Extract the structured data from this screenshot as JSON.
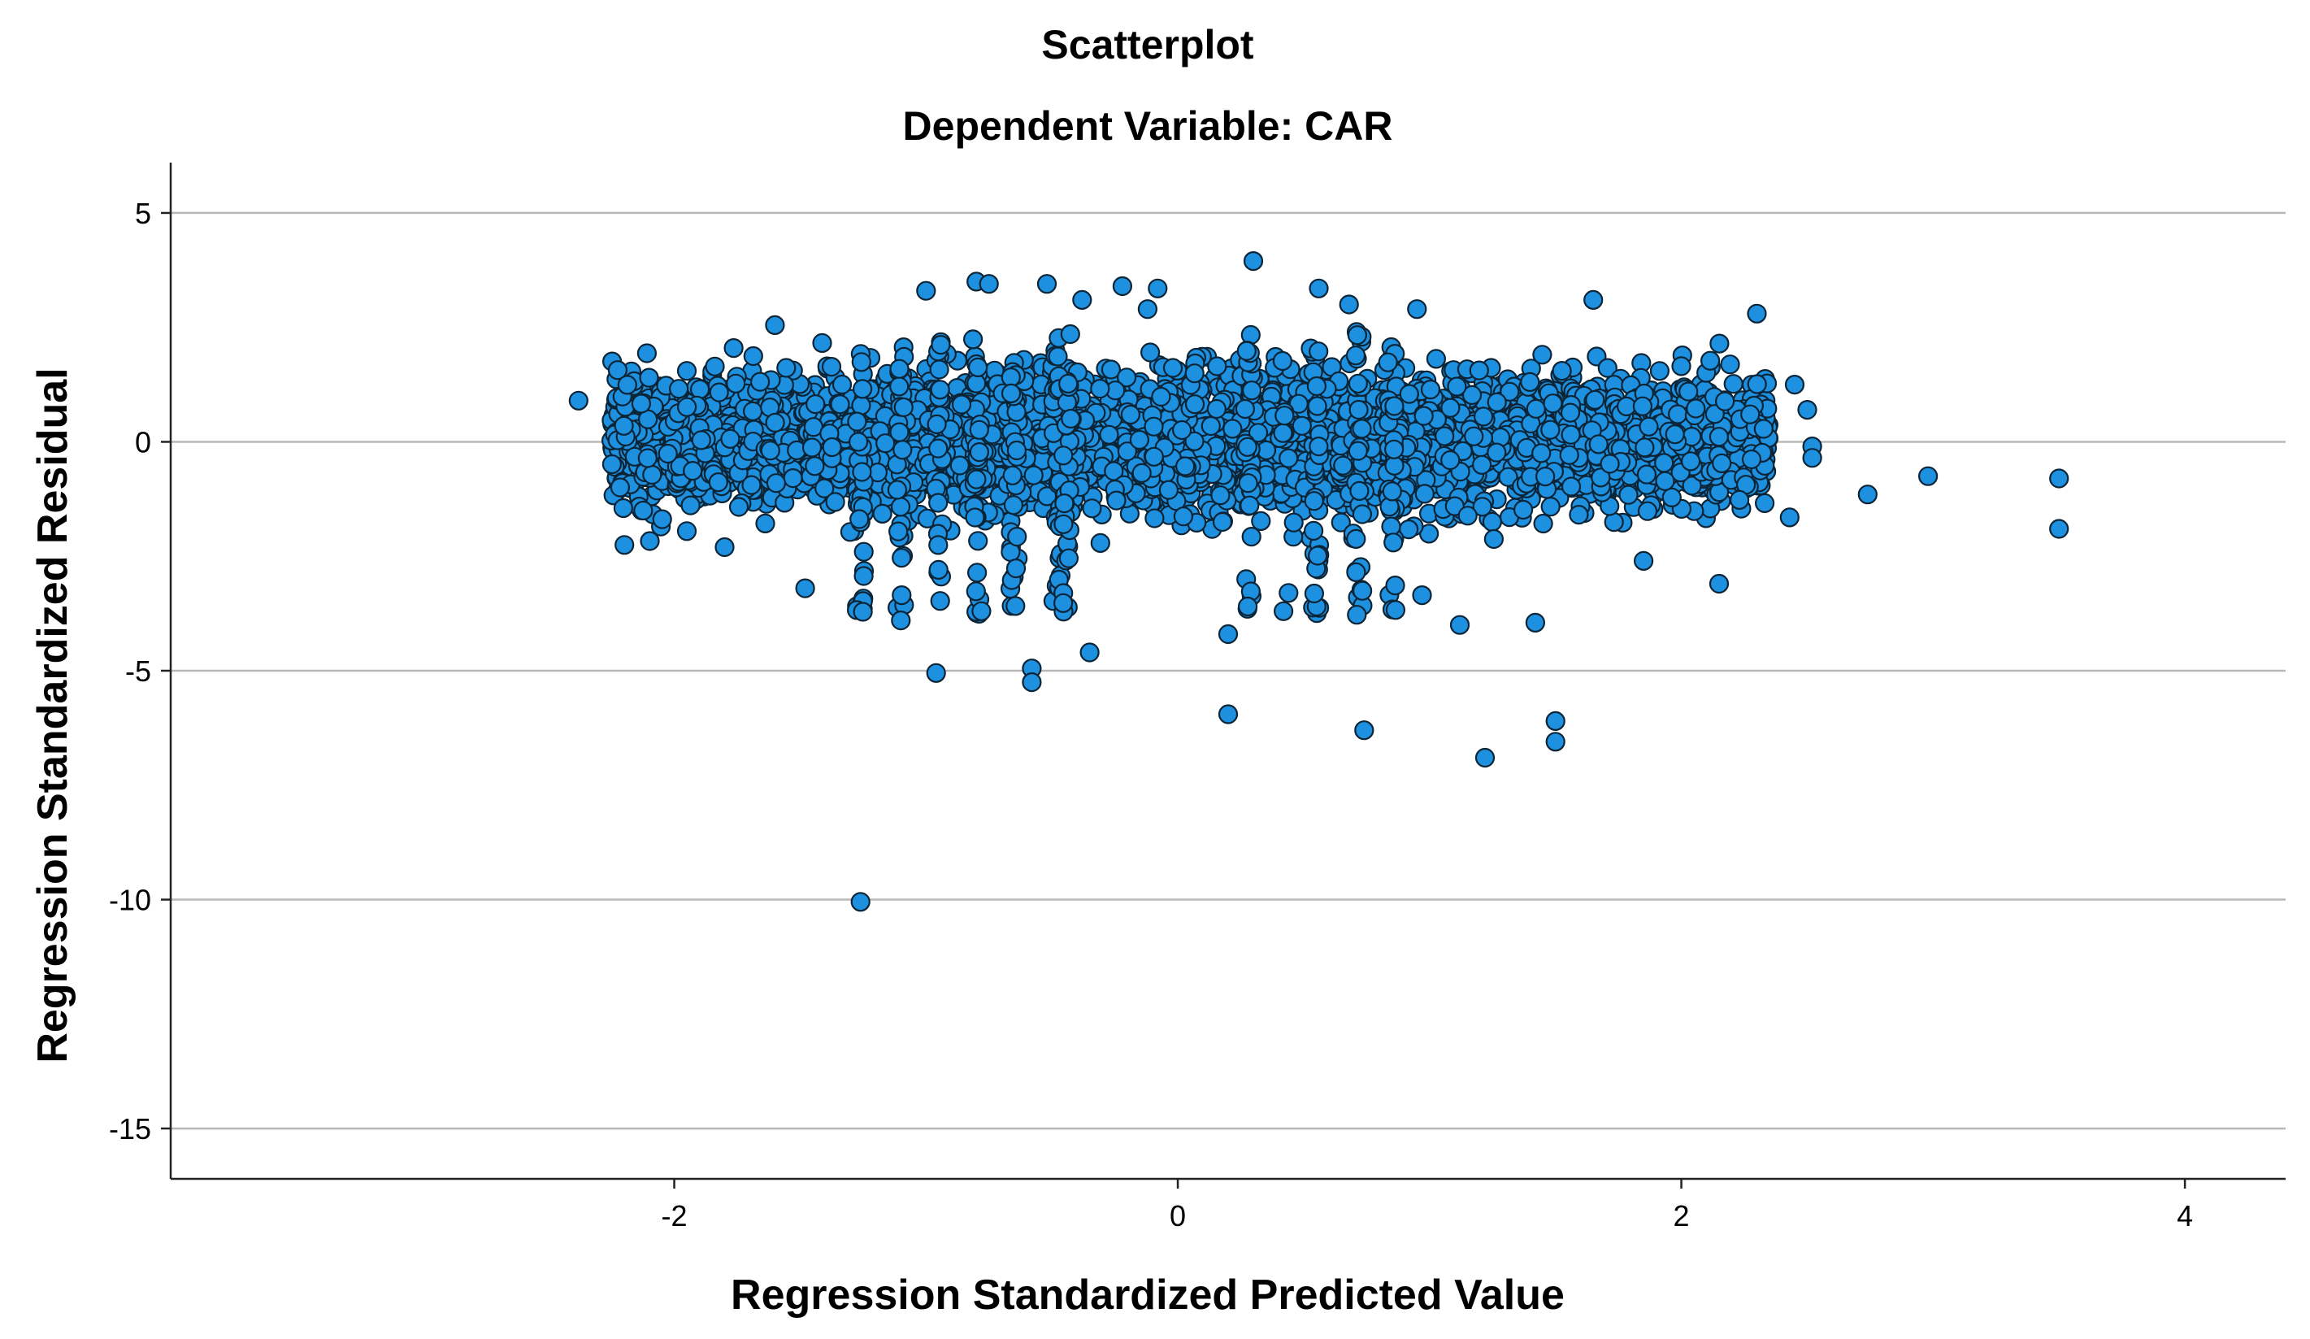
{
  "chart_data": {
    "type": "scatter",
    "title": "Scatterplot",
    "subtitle": "Dependent Variable: CAR",
    "xlabel": "Regression Standardized Predicted Value",
    "ylabel": "Regression Standardized Residual",
    "xlim": [
      -4,
      4.4
    ],
    "ylim": [
      -16.1,
      6.1
    ],
    "x_ticks": [
      -2,
      0,
      2,
      4
    ],
    "y_ticks": [
      5,
      0,
      -5,
      -10,
      -15
    ],
    "x_tick_labels": [
      "-2",
      "0",
      "2",
      "4"
    ],
    "y_tick_labels": [
      "5",
      "0",
      "-5",
      "-10",
      "-15"
    ],
    "grid": "horizontal",
    "marker_color": "#1e90e0",
    "marker_edge_color": "#0b2436",
    "note": "Dense cloud of several thousand residuals concentrated between x=-2.2 and x=2.5, y mostly between -2.5 and 2. Outliers listed explicitly; cloud sampled.",
    "outliers": [
      {
        "x": -2.38,
        "y": 0.9
      },
      {
        "x": -1.26,
        "y": -10.05
      },
      {
        "x": -0.96,
        "y": -5.05
      },
      {
        "x": -0.58,
        "y": -4.95
      },
      {
        "x": -0.58,
        "y": -5.25
      },
      {
        "x": -0.35,
        "y": -4.6
      },
      {
        "x": 0.2,
        "y": -4.2
      },
      {
        "x": 0.2,
        "y": -5.95
      },
      {
        "x": 0.74,
        "y": -6.3
      },
      {
        "x": 1.12,
        "y": -4.0
      },
      {
        "x": 1.22,
        "y": -6.9
      },
      {
        "x": 1.42,
        "y": -3.95
      },
      {
        "x": 1.5,
        "y": -6.1
      },
      {
        "x": 1.5,
        "y": -6.55
      },
      {
        "x": 2.74,
        "y": -1.15
      },
      {
        "x": 2.98,
        "y": -0.75
      },
      {
        "x": 3.5,
        "y": -0.8
      },
      {
        "x": 3.5,
        "y": -1.9
      },
      {
        "x": 0.3,
        "y": 3.95
      },
      {
        "x": -0.8,
        "y": 3.5
      },
      {
        "x": -0.75,
        "y": 3.45
      },
      {
        "x": -0.52,
        "y": 3.45
      },
      {
        "x": -1.0,
        "y": 3.3
      },
      {
        "x": -0.22,
        "y": 3.4
      },
      {
        "x": -0.08,
        "y": 3.35
      },
      {
        "x": -0.12,
        "y": 2.9
      },
      {
        "x": 0.56,
        "y": 3.35
      },
      {
        "x": 0.68,
        "y": 3.0
      },
      {
        "x": 1.65,
        "y": 3.1
      },
      {
        "x": 2.3,
        "y": 2.8
      },
      {
        "x": -1.6,
        "y": 2.55
      },
      {
        "x": -0.38,
        "y": 3.1
      },
      {
        "x": 0.95,
        "y": 2.9
      },
      {
        "x": 2.45,
        "y": 1.25
      },
      {
        "x": 2.5,
        "y": 0.7
      },
      {
        "x": 2.52,
        "y": -0.1
      },
      {
        "x": 2.52,
        "y": -0.35
      },
      {
        "x": 2.43,
        "y": -1.65
      },
      {
        "x": 2.15,
        "y": -3.1
      },
      {
        "x": 1.85,
        "y": -2.6
      },
      {
        "x": 0.97,
        "y": -3.35
      },
      {
        "x": 0.42,
        "y": -3.7
      },
      {
        "x": 0.44,
        "y": -3.3
      },
      {
        "x": -0.78,
        "y": -3.7
      },
      {
        "x": -1.1,
        "y": -3.9
      },
      {
        "x": -1.48,
        "y": -3.2
      },
      {
        "x": -1.8,
        "y": -2.3
      },
      {
        "x": -1.95,
        "y": -1.95
      },
      {
        "x": -2.2,
        "y": 0.35
      },
      {
        "x": -1.95,
        "y": 1.55
      },
      {
        "x": -2.1,
        "y": 1.4
      }
    ],
    "cloud": {
      "count": 4200,
      "x_range": [
        -2.25,
        2.35
      ],
      "y_core": [
        -1.3,
        1.4
      ],
      "y_spread": [
        -2.2,
        2.2
      ]
    }
  }
}
